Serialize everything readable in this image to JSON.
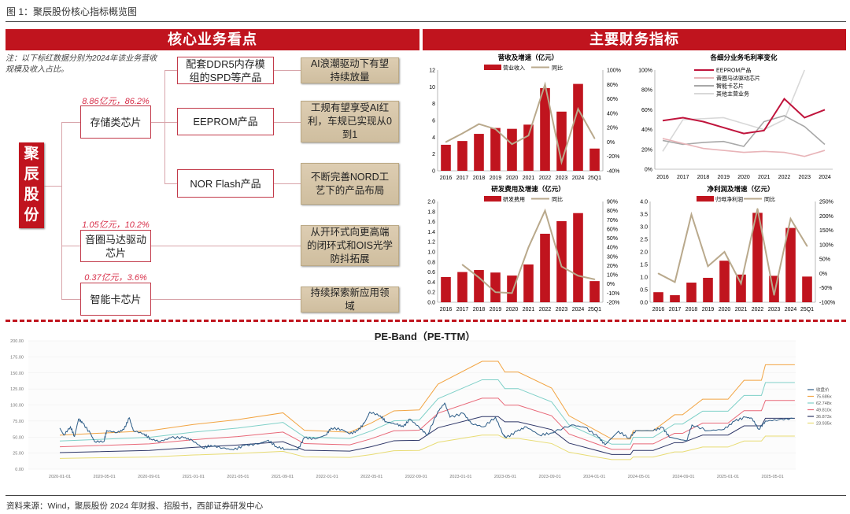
{
  "figure_title": "图 1：聚辰股份核心指标概览图",
  "left": {
    "header": "核心业务看点",
    "note": "注：以下标红数据分别为2024年该业务营收规模及收入占比。",
    "root": "聚辰股份",
    "segments": [
      {
        "name": "存储类芯片",
        "stat": "8.86亿元，86.2%"
      },
      {
        "name": "音圈马达驱动芯片",
        "stat": "1.05亿元，10.2%"
      },
      {
        "name": "智能卡芯片",
        "stat": "0.37亿元，3.6%"
      }
    ],
    "products": [
      "配套DDR5内存模组的SPD等产品",
      "EEPROM产品",
      "NOR Flash产品"
    ],
    "outlooks": [
      "AI浪潮驱动下有望持续放量",
      "工规有望享受AI红利，车规已实现从0到1",
      "不断完善NORD工艺下的产品布局",
      "从开环式向更高端的闭环式和OIS光学防抖拓展",
      "持续探索新应用领域"
    ]
  },
  "right": {
    "header": "主要财务指标"
  },
  "pe_title": "PE-Band（PE-TTM）",
  "source": "资料来源：Wind，聚辰股份 2024 年财报、招股书，西部证券研发中心",
  "colors": {
    "accent": "#c0141e",
    "bar": "#c0141e",
    "yoy_line": "#b9a98c"
  },
  "chart_data": [
    {
      "type": "bar+line",
      "title": "营收及增速（亿元）",
      "categories": [
        "2016",
        "2017",
        "2018",
        "2019",
        "2020",
        "2021",
        "2022",
        "2023",
        "2024",
        "25Q1"
      ],
      "bar": {
        "name": "营业收入",
        "values": [
          3.1,
          3.55,
          4.4,
          5.1,
          5.0,
          5.5,
          9.85,
          7.05,
          10.35,
          2.65
        ]
      },
      "line": {
        "name": "同比",
        "values": [
          0,
          12,
          25,
          18,
          -3,
          9,
          80,
          -28,
          46,
          5
        ]
      },
      "ylim": [
        0,
        12
      ],
      "yticks": [
        "0",
        "2",
        "4",
        "6",
        "8",
        "10",
        "12"
      ],
      "y2lim": [
        -40,
        100
      ],
      "y2ticks": [
        "-40%",
        "-20%",
        "0%",
        "20%",
        "40%",
        "60%",
        "80%",
        "100%"
      ]
    },
    {
      "type": "line",
      "title": "各细分业务毛利率变化",
      "categories": [
        "2016",
        "2017",
        "2018",
        "2019",
        "2020",
        "2021",
        "2022",
        "2023",
        "2024"
      ],
      "series": [
        {
          "name": "EEPROM产品",
          "color": "#c0143c",
          "values": [
            49,
            52,
            48,
            42,
            36,
            39,
            71,
            52,
            60
          ]
        },
        {
          "name": "音圈马达驱动芯片",
          "color": "#e8b4b8",
          "values": [
            31,
            26,
            21,
            19,
            17,
            18,
            17,
            13,
            19
          ]
        },
        {
          "name": "智能卡芯片",
          "color": "#a8a8a8",
          "values": [
            29,
            25,
            27,
            28,
            23,
            48,
            54,
            43,
            25
          ]
        },
        {
          "name": "其他主营业务",
          "color": "#d8d8d8",
          "values": [
            18,
            50,
            51,
            52,
            46,
            40,
            50,
            100,
            null
          ]
        }
      ],
      "ylim": [
        0,
        100
      ],
      "yticks": [
        "0%",
        "20%",
        "40%",
        "60%",
        "80%",
        "100%"
      ]
    },
    {
      "type": "bar+line",
      "title": "研发费用及增速（亿元）",
      "categories": [
        "2016",
        "2017",
        "2018",
        "2019",
        "2020",
        "2021",
        "2022",
        "2023",
        "2024",
        "25Q1"
      ],
      "bar": {
        "name": "研发费用",
        "values": [
          0.5,
          0.6,
          0.64,
          0.59,
          0.53,
          0.75,
          1.36,
          1.61,
          1.77,
          0.42
        ]
      },
      "line": {
        "name": "同比",
        "values": [
          null,
          21,
          7,
          -9,
          -10,
          40,
          80,
          19,
          9,
          5
        ]
      },
      "ylim": [
        0,
        2.0
      ],
      "yticks": [
        "0.0",
        "0.2",
        "0.4",
        "0.6",
        "0.8",
        "1.0",
        "1.2",
        "1.4",
        "1.6",
        "1.8",
        "2.0"
      ],
      "y2lim": [
        -20,
        90
      ],
      "y2ticks": [
        "-20%",
        "-10%",
        "0%",
        "10%",
        "20%",
        "30%",
        "40%",
        "50%",
        "60%",
        "70%",
        "80%",
        "90%"
      ]
    },
    {
      "type": "bar+line",
      "title": "净利润及增速（亿元）",
      "categories": [
        "2016",
        "2017",
        "2018",
        "2019",
        "2020",
        "2021",
        "2022",
        "2023",
        "2024",
        "25Q1"
      ],
      "bar": {
        "name": "归母净利润",
        "values": [
          0.4,
          0.28,
          0.78,
          0.97,
          1.65,
          1.1,
          3.55,
          1.05,
          2.95,
          1.02
        ]
      },
      "line": {
        "name": "同比",
        "values": [
          0,
          -30,
          205,
          25,
          75,
          -35,
          225,
          -75,
          190,
          95
        ]
      },
      "ylim": [
        0,
        4.0
      ],
      "yticks": [
        "0.0",
        "0.5",
        "1.0",
        "1.5",
        "2.0",
        "2.5",
        "3.0",
        "3.5",
        "4.0"
      ],
      "y2lim": [
        -100,
        250
      ],
      "y2ticks": [
        "-100%",
        "-50%",
        "0%",
        "50%",
        "100%",
        "150%",
        "200%",
        "250%"
      ]
    },
    {
      "type": "line",
      "title": "PE-Band（PE-TTM）",
      "ylim": [
        0,
        200
      ],
      "yticks": [
        "0.00",
        "25.00",
        "50.00",
        "75.00",
        "100.00",
        "125.00",
        "150.00",
        "175.00",
        "200.00"
      ],
      "xticks": [
        "2020-01-01",
        "2020-05-01",
        "2020-09-01",
        "2021-01-01",
        "2021-05-01",
        "2021-09-01",
        "2022-01-01",
        "2022-05-01",
        "2022-09-01",
        "2023-01-01",
        "2023-05-01",
        "2023-09-01",
        "2024-01-01",
        "2024-05-01",
        "2024-09-01",
        "2025-01-01",
        "2025-05-01"
      ],
      "close": {
        "name": "收盘价",
        "color": "#2b5b86",
        "points": [
          [
            2020.0,
            64
          ],
          [
            2020.03,
            53
          ],
          [
            2020.08,
            66
          ],
          [
            2020.11,
            51
          ],
          [
            2020.14,
            78
          ],
          [
            2020.17,
            72
          ],
          [
            2020.23,
            55
          ],
          [
            2020.26,
            43
          ],
          [
            2020.33,
            43
          ],
          [
            2020.35,
            60
          ],
          [
            2020.43,
            57
          ],
          [
            2020.48,
            62
          ],
          [
            2020.52,
            80
          ],
          [
            2020.55,
            60
          ],
          [
            2020.63,
            55
          ],
          [
            2020.68,
            47
          ],
          [
            2020.75,
            43
          ],
          [
            2020.83,
            49
          ],
          [
            2020.93,
            49
          ],
          [
            2020.99,
            45
          ],
          [
            2021.07,
            33
          ],
          [
            2021.13,
            37
          ],
          [
            2021.22,
            33
          ],
          [
            2021.3,
            30
          ],
          [
            2021.38,
            37
          ],
          [
            2021.48,
            39
          ],
          [
            2021.56,
            45
          ],
          [
            2021.62,
            35
          ],
          [
            2021.69,
            31
          ],
          [
            2021.78,
            30
          ],
          [
            2021.83,
            49
          ],
          [
            2021.91,
            47
          ],
          [
            2021.99,
            53
          ],
          [
            2022.03,
            64
          ],
          [
            2022.11,
            62
          ],
          [
            2022.17,
            55
          ],
          [
            2022.23,
            60
          ],
          [
            2022.28,
            72
          ],
          [
            2022.32,
            89
          ],
          [
            2022.4,
            83
          ],
          [
            2022.44,
            74
          ],
          [
            2022.52,
            70
          ],
          [
            2022.57,
            66
          ],
          [
            2022.62,
            78
          ],
          [
            2022.69,
            65
          ],
          [
            2022.75,
            53
          ],
          [
            2022.83,
            90
          ],
          [
            2022.88,
            103
          ],
          [
            2022.92,
            81
          ],
          [
            2023.02,
            87
          ],
          [
            2023.08,
            71
          ],
          [
            2023.17,
            66
          ],
          [
            2023.26,
            81
          ],
          [
            2023.32,
            53
          ],
          [
            2023.34,
            49
          ],
          [
            2023.42,
            59
          ],
          [
            2023.49,
            66
          ],
          [
            2023.59,
            53
          ],
          [
            2023.67,
            56
          ],
          [
            2023.83,
            69
          ],
          [
            2023.93,
            65
          ],
          [
            2024.03,
            50
          ],
          [
            2024.08,
            38
          ],
          [
            2024.18,
            59
          ],
          [
            2024.26,
            48
          ],
          [
            2024.31,
            60
          ],
          [
            2024.44,
            60
          ],
          [
            2024.51,
            65
          ],
          [
            2024.56,
            50
          ],
          [
            2024.69,
            44
          ],
          [
            2024.73,
            69
          ],
          [
            2024.85,
            60
          ],
          [
            2024.97,
            62
          ],
          [
            2025.05,
            75
          ],
          [
            2025.13,
            81
          ],
          [
            2025.18,
            79
          ],
          [
            2025.23,
            62
          ],
          [
            2025.28,
            75
          ],
          [
            2025.38,
            77
          ],
          [
            2025.49,
            79
          ]
        ]
      },
      "eps": [
        [
          2020.0,
          0.7
        ],
        [
          2020.67,
          0.79
        ],
        [
          2021.0,
          0.92
        ],
        [
          2021.33,
          1.02
        ],
        [
          2021.67,
          1.16
        ],
        [
          2021.83,
          0.8
        ],
        [
          2022.17,
          0.76
        ],
        [
          2022.33,
          0.95
        ],
        [
          2022.5,
          1.2
        ],
        [
          2022.69,
          1.22
        ],
        [
          2022.83,
          1.75
        ],
        [
          2023.16,
          2.22
        ],
        [
          2023.28,
          2.22
        ],
        [
          2023.33,
          2.0
        ],
        [
          2023.43,
          2.0
        ],
        [
          2023.68,
          1.67
        ],
        [
          2023.81,
          1.1
        ],
        [
          2024.13,
          0.62
        ],
        [
          2024.27,
          0.62
        ],
        [
          2024.29,
          0.79
        ],
        [
          2024.44,
          0.79
        ],
        [
          2024.6,
          1.12
        ],
        [
          2024.66,
          1.12
        ],
        [
          2024.81,
          1.44
        ],
        [
          2025.0,
          1.44
        ],
        [
          2025.12,
          1.83
        ],
        [
          2025.25,
          1.83
        ],
        [
          2025.28,
          2.15
        ],
        [
          2025.5,
          2.15
        ]
      ],
      "bands": [
        {
          "name": "75.686x",
          "multiple": 75.686,
          "color": "#f2a442"
        },
        {
          "name": "62.748x",
          "multiple": 62.748,
          "color": "#7fd0c8"
        },
        {
          "name": "49.810x",
          "multiple": 49.81,
          "color": "#e86878"
        },
        {
          "name": "36.873x",
          "multiple": 36.873,
          "color": "#2e3768"
        },
        {
          "name": "23.935x",
          "multiple": 23.935,
          "color": "#e8dc74"
        }
      ]
    }
  ]
}
